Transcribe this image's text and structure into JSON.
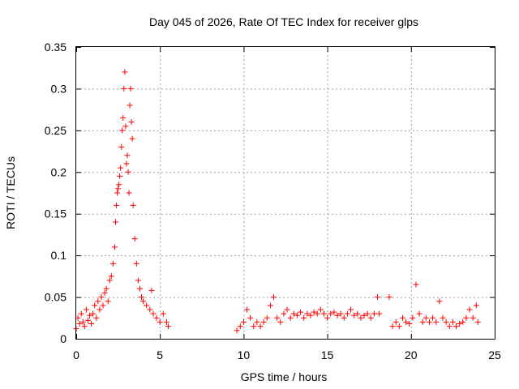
{
  "chart_data": {
    "type": "scatter",
    "title": "Day 045 of 2026, Rate Of TEC Index for receiver glps",
    "xlabel": "GPS time / hours",
    "ylabel": "ROTI / TECUs",
    "xlim": [
      0,
      25
    ],
    "ylim": [
      0,
      0.35
    ],
    "x_ticks": [
      0,
      5,
      10,
      15,
      20,
      25
    ],
    "y_ticks": [
      0,
      0.05,
      0.1,
      0.15,
      0.2,
      0.25,
      0.3,
      0.35
    ],
    "x_tick_labels": [
      "0",
      "5",
      "10",
      "15",
      "20",
      "25"
    ],
    "y_tick_labels": [
      "0",
      "0.05",
      "0.1",
      "0.15",
      "0.2",
      "0.25",
      "0.3",
      "0.35"
    ],
    "grid": true,
    "marker": "+",
    "color": "#ff0000",
    "series": [
      {
        "name": "ROTI",
        "points": [
          [
            0.0,
            0.012
          ],
          [
            0.1,
            0.025
          ],
          [
            0.2,
            0.018
          ],
          [
            0.3,
            0.03
          ],
          [
            0.4,
            0.02
          ],
          [
            0.5,
            0.015
          ],
          [
            0.6,
            0.035
          ],
          [
            0.7,
            0.022
          ],
          [
            0.8,
            0.028
          ],
          [
            0.9,
            0.018
          ],
          [
            1.0,
            0.03
          ],
          [
            1.1,
            0.04
          ],
          [
            1.2,
            0.025
          ],
          [
            1.3,
            0.045
          ],
          [
            1.4,
            0.035
          ],
          [
            1.5,
            0.05
          ],
          [
            1.6,
            0.04
          ],
          [
            1.7,
            0.055
          ],
          [
            1.8,
            0.06
          ],
          [
            1.9,
            0.045
          ],
          [
            2.0,
            0.07
          ],
          [
            2.1,
            0.075
          ],
          [
            2.2,
            0.09
          ],
          [
            2.3,
            0.11
          ],
          [
            2.35,
            0.14
          ],
          [
            2.4,
            0.16
          ],
          [
            2.45,
            0.175
          ],
          [
            2.5,
            0.18
          ],
          [
            2.55,
            0.185
          ],
          [
            2.6,
            0.195
          ],
          [
            2.65,
            0.205
          ],
          [
            2.7,
            0.23
          ],
          [
            2.75,
            0.25
          ],
          [
            2.8,
            0.265
          ],
          [
            2.85,
            0.3
          ],
          [
            2.9,
            0.32
          ],
          [
            2.95,
            0.255
          ],
          [
            3.0,
            0.21
          ],
          [
            3.05,
            0.22
          ],
          [
            3.1,
            0.2
          ],
          [
            3.15,
            0.175
          ],
          [
            3.2,
            0.28
          ],
          [
            3.25,
            0.3
          ],
          [
            3.3,
            0.26
          ],
          [
            3.35,
            0.24
          ],
          [
            3.4,
            0.16
          ],
          [
            3.5,
            0.12
          ],
          [
            3.6,
            0.09
          ],
          [
            3.7,
            0.07
          ],
          [
            3.8,
            0.06
          ],
          [
            3.9,
            0.05
          ],
          [
            4.0,
            0.045
          ],
          [
            4.2,
            0.04
          ],
          [
            4.4,
            0.035
          ],
          [
            4.5,
            0.058
          ],
          [
            4.6,
            0.03
          ],
          [
            4.8,
            0.025
          ],
          [
            5.0,
            0.02
          ],
          [
            5.2,
            0.03
          ],
          [
            5.4,
            0.02
          ],
          [
            5.5,
            0.015
          ],
          [
            9.6,
            0.01
          ],
          [
            9.8,
            0.015
          ],
          [
            10.0,
            0.02
          ],
          [
            10.2,
            0.035
          ],
          [
            10.4,
            0.025
          ],
          [
            10.6,
            0.015
          ],
          [
            10.8,
            0.02
          ],
          [
            11.0,
            0.015
          ],
          [
            11.2,
            0.02
          ],
          [
            11.4,
            0.025
          ],
          [
            11.6,
            0.04
          ],
          [
            11.8,
            0.05
          ],
          [
            12.0,
            0.025
          ],
          [
            12.2,
            0.02
          ],
          [
            12.4,
            0.03
          ],
          [
            12.6,
            0.035
          ],
          [
            12.8,
            0.025
          ],
          [
            13.0,
            0.03
          ],
          [
            13.2,
            0.028
          ],
          [
            13.4,
            0.032
          ],
          [
            13.6,
            0.025
          ],
          [
            13.8,
            0.03
          ],
          [
            14.0,
            0.028
          ],
          [
            14.2,
            0.032
          ],
          [
            14.4,
            0.03
          ],
          [
            14.6,
            0.035
          ],
          [
            14.8,
            0.03
          ],
          [
            15.0,
            0.025
          ],
          [
            15.2,
            0.03
          ],
          [
            15.4,
            0.032
          ],
          [
            15.6,
            0.028
          ],
          [
            15.8,
            0.03
          ],
          [
            16.0,
            0.025
          ],
          [
            16.2,
            0.03
          ],
          [
            16.4,
            0.035
          ],
          [
            16.6,
            0.028
          ],
          [
            16.8,
            0.03
          ],
          [
            17.0,
            0.025
          ],
          [
            17.2,
            0.028
          ],
          [
            17.4,
            0.03
          ],
          [
            17.6,
            0.025
          ],
          [
            17.8,
            0.03
          ],
          [
            18.0,
            0.05
          ],
          [
            18.1,
            0.03
          ],
          [
            18.7,
            0.05
          ],
          [
            18.9,
            0.015
          ],
          [
            19.1,
            0.02
          ],
          [
            19.3,
            0.015
          ],
          [
            19.5,
            0.025
          ],
          [
            19.7,
            0.02
          ],
          [
            19.9,
            0.018
          ],
          [
            20.1,
            0.025
          ],
          [
            20.3,
            0.065
          ],
          [
            20.5,
            0.03
          ],
          [
            20.7,
            0.02
          ],
          [
            20.9,
            0.025
          ],
          [
            21.1,
            0.02
          ],
          [
            21.3,
            0.025
          ],
          [
            21.5,
            0.02
          ],
          [
            21.7,
            0.045
          ],
          [
            21.9,
            0.025
          ],
          [
            22.1,
            0.02
          ],
          [
            22.3,
            0.015
          ],
          [
            22.5,
            0.02
          ],
          [
            22.7,
            0.015
          ],
          [
            22.9,
            0.018
          ],
          [
            23.1,
            0.02
          ],
          [
            23.3,
            0.025
          ],
          [
            23.5,
            0.035
          ],
          [
            23.7,
            0.025
          ],
          [
            23.9,
            0.04
          ],
          [
            24.0,
            0.02
          ]
        ]
      }
    ]
  }
}
